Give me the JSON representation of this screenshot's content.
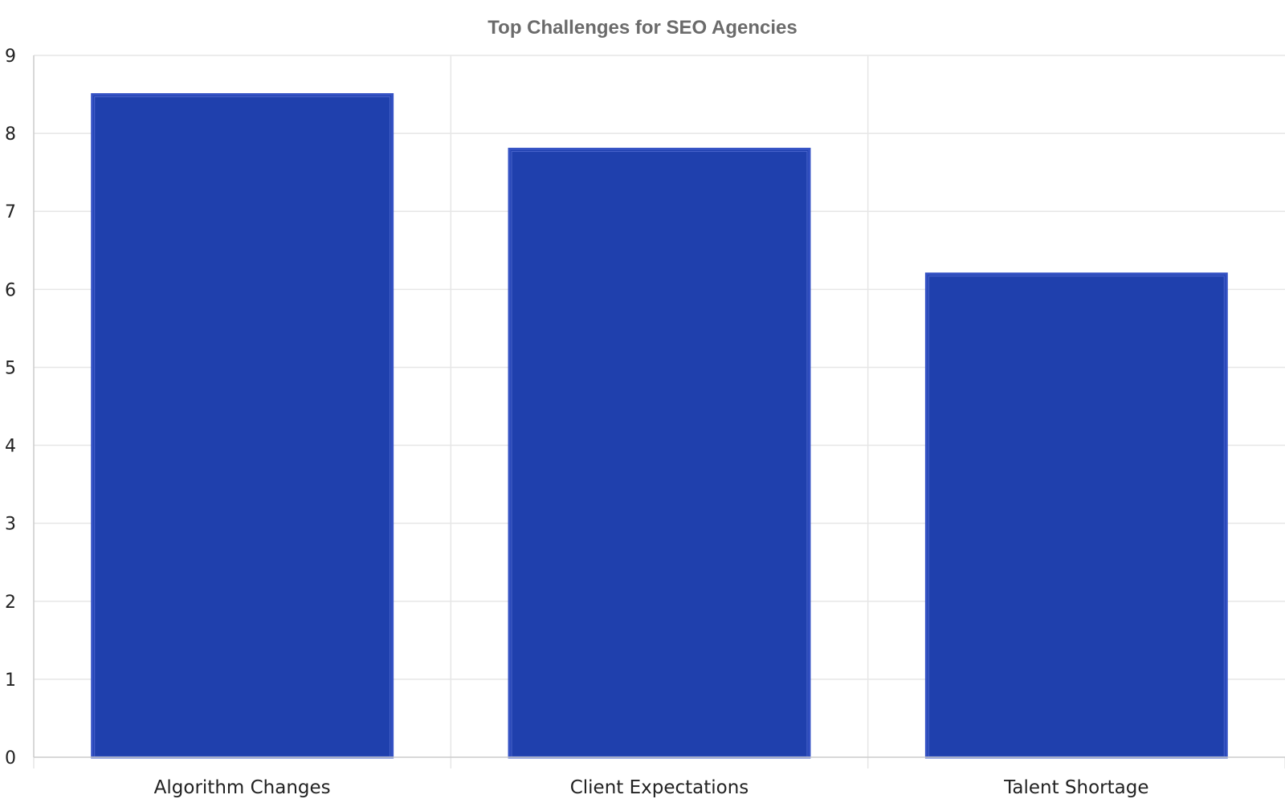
{
  "chart_data": {
    "type": "bar",
    "title": "Top Challenges for SEO Agencies",
    "xlabel": "",
    "ylabel": "",
    "categories": [
      "Algorithm Changes",
      "Client Expectations",
      "Talent Shortage"
    ],
    "values": [
      8.5,
      7.8,
      6.2
    ],
    "ylim": [
      0,
      9
    ],
    "yticks": [
      0,
      1,
      2,
      3,
      4,
      5,
      6,
      7,
      8,
      9
    ],
    "grid": true,
    "legend": "none",
    "colors": {
      "bar_fill": "#1f40ad",
      "bar_edge": "#3552c4",
      "grid": "#e6e6e6",
      "title": "#6b6b6b",
      "text": "#222222"
    }
  }
}
